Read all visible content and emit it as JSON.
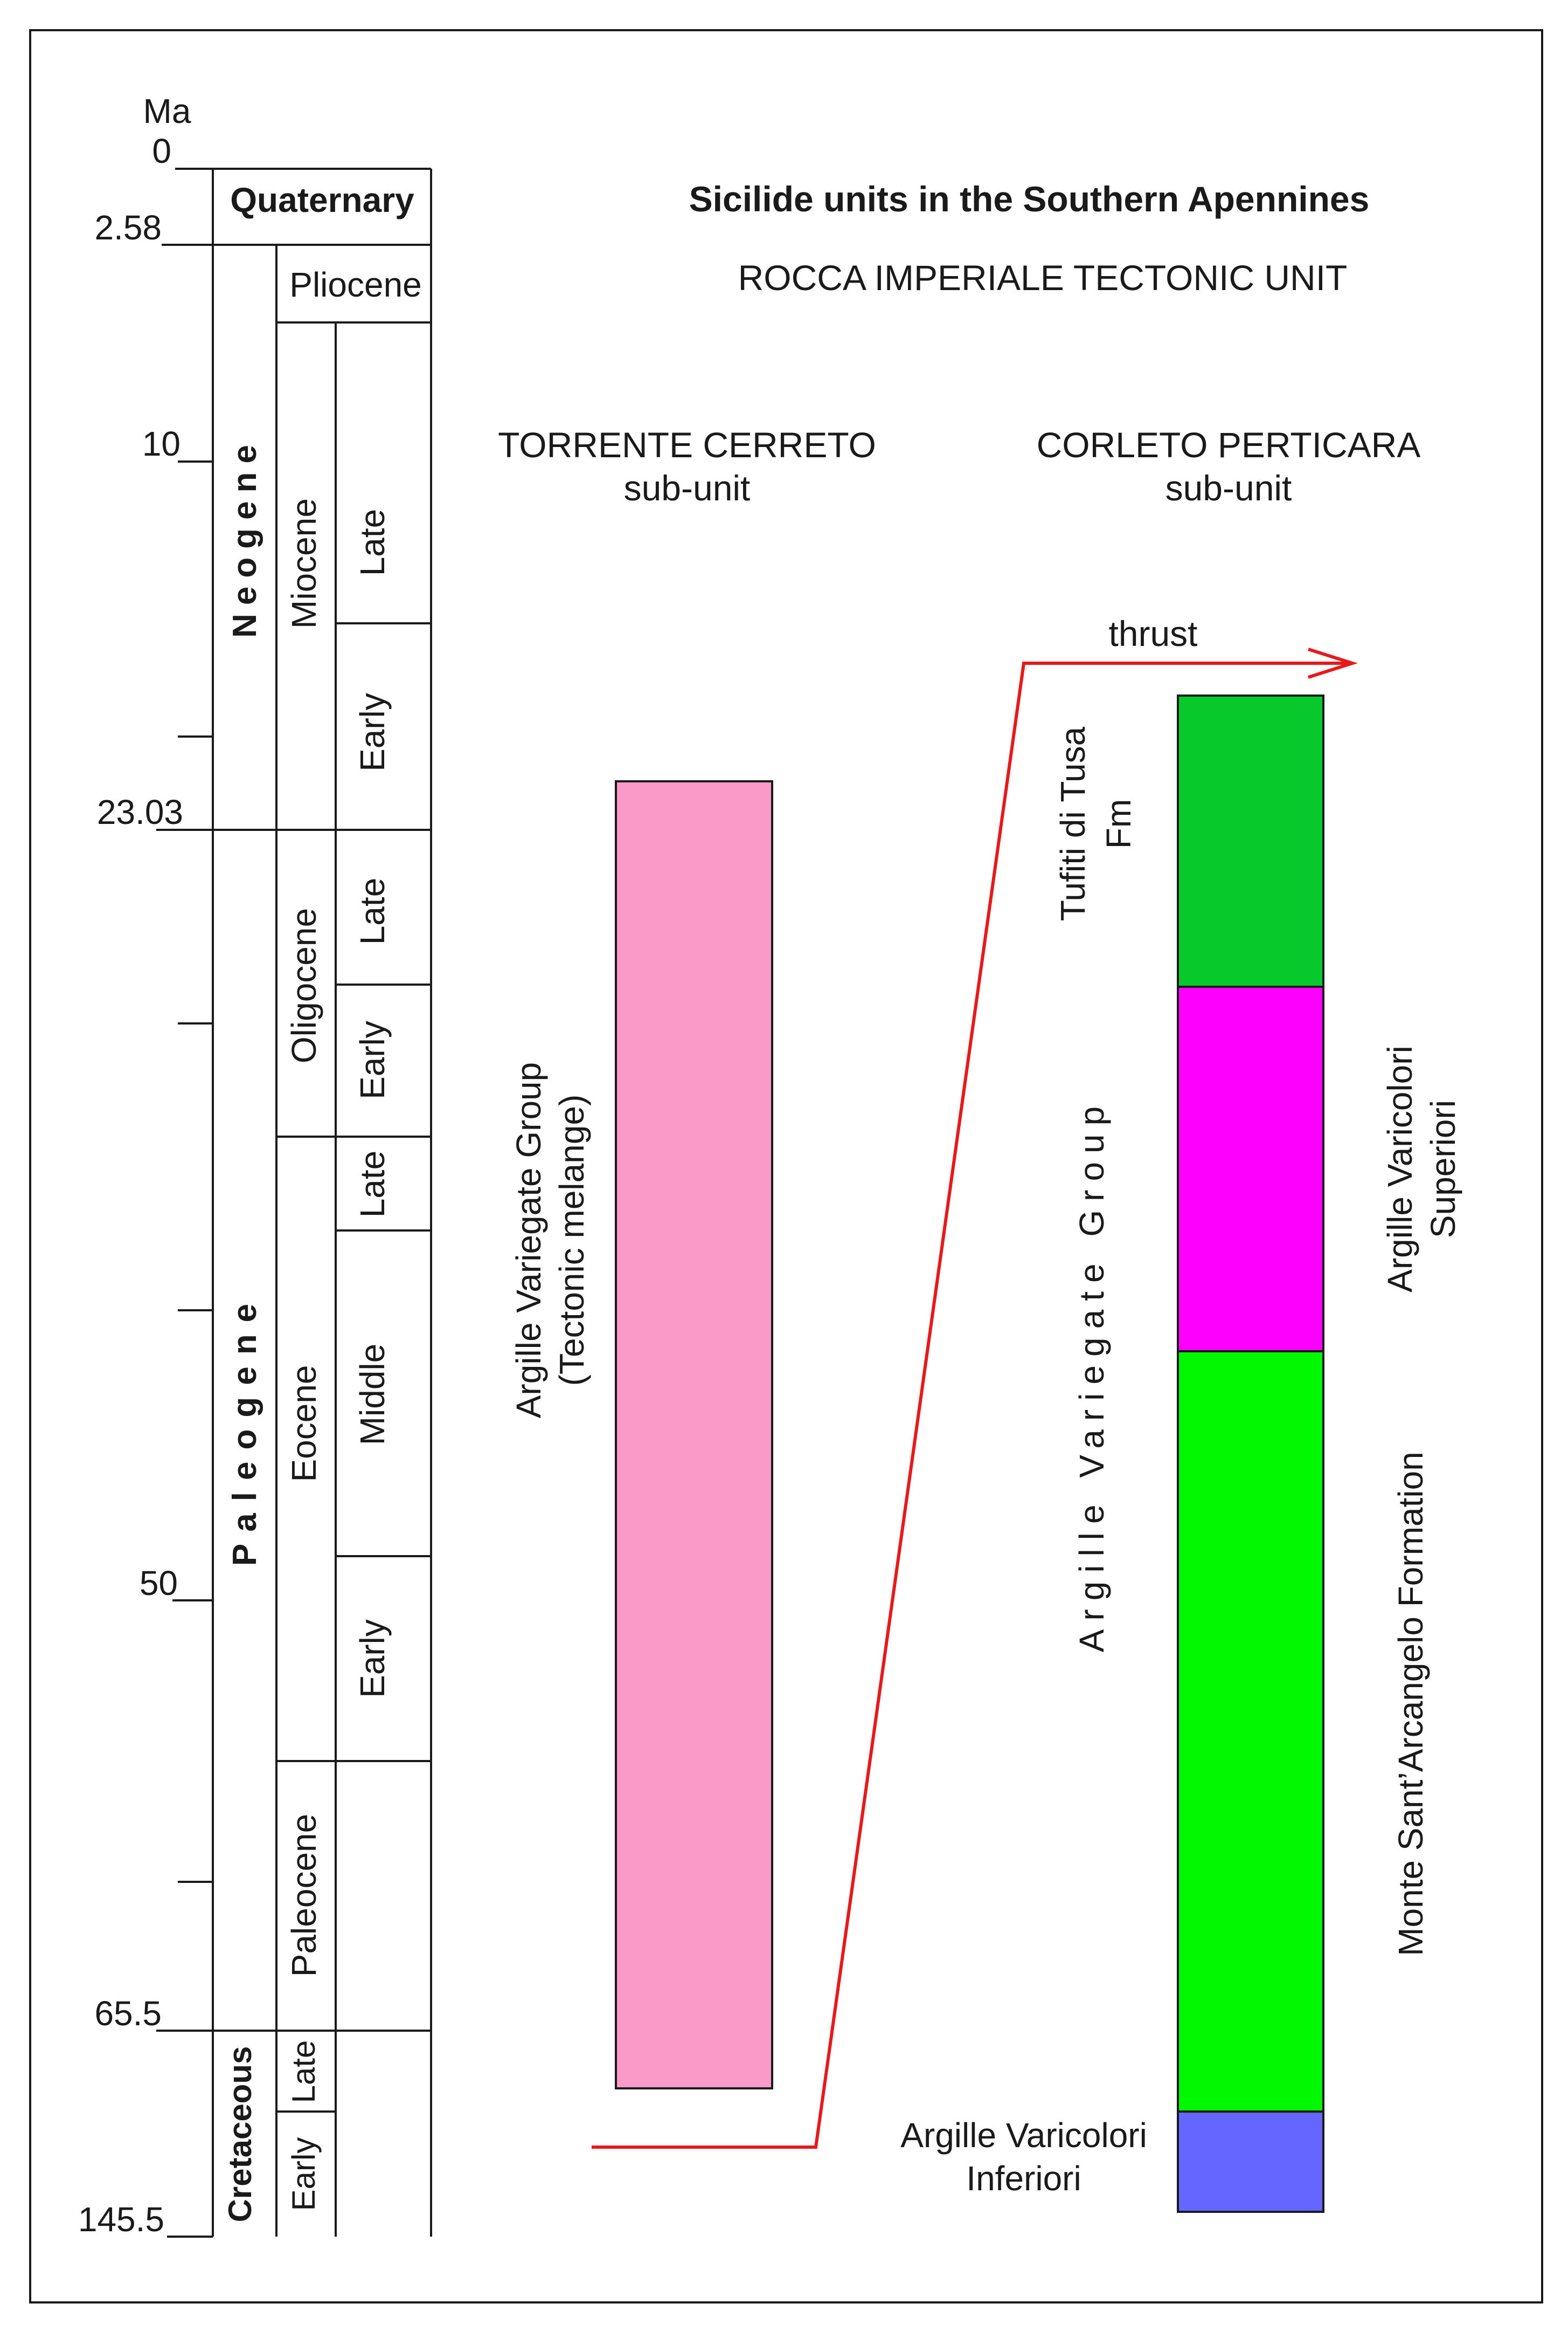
{
  "title": "Sicilide units in the Southern Apennines",
  "subtitle": "ROCCA IMPERIALE TECTONIC UNIT",
  "time_scale": {
    "unit_label": "Ma",
    "ticks": [
      {
        "label": "0",
        "ma": 0
      },
      {
        "label": "2.58",
        "ma": 2.58
      },
      {
        "label": "10",
        "ma": 10
      },
      {
        "label": "23.03",
        "ma": 23.03
      },
      {
        "label": "50",
        "ma": 50
      },
      {
        "label": "65.5",
        "ma": 65.5
      },
      {
        "label": "145.5",
        "ma": 145.5
      }
    ],
    "periods": {
      "quaternary": "Quaternary",
      "neogene": "Neogene",
      "paleogene": "Paleogene",
      "cretaceous": "Cretaceous"
    },
    "epochs": {
      "pliocene": "Pliocene",
      "miocene": "Miocene",
      "oligocene": "Oligocene",
      "eocene": "Eocene",
      "paleocene": "Paleocene",
      "cret_late": "Late",
      "cret_early": "Early"
    },
    "subepochs": {
      "miocene_late": "Late",
      "miocene_early": "Early",
      "oligocene_late": "Late",
      "oligocene_early": "Early",
      "eocene_late": "Late",
      "eocene_middle": "Middle",
      "eocene_early": "Early"
    }
  },
  "columns": {
    "torrente": {
      "title": "TORRENTE CERRETO",
      "subtitle": "sub-unit",
      "unit_name": "Argille Variegate Group",
      "unit_note": "(Tectonic melange)",
      "color": "#f99ac9"
    },
    "corleto": {
      "title": "CORLETO PERTICARA",
      "subtitle": "sub-unit",
      "group_label": "Argille Variegate Group",
      "thrust_label": "thrust",
      "thrust_color": "#e8191a",
      "units": [
        {
          "name": "Tufiti di Tusa",
          "name2": "Fm",
          "color": "#07c92b"
        },
        {
          "name": "Argille Varicolori",
          "name2": "Superiori",
          "color": "#fd00fd"
        },
        {
          "name": "Monte Sant’Arcangelo Formation",
          "color": "#00f900"
        },
        {
          "name": "Argille Varicolori",
          "name2": "Inferiori",
          "color": "#6565ff"
        }
      ]
    }
  }
}
